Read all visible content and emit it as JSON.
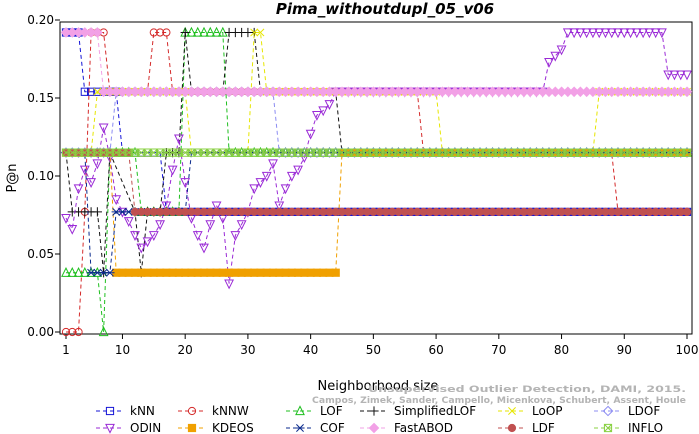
{
  "chart_data": {
    "type": "line",
    "title": "Pima_withoutdupl_05_v06",
    "xlabel": "Neighborhood size",
    "ylabel": "P@n",
    "xlim": [
      1,
      100
    ],
    "ylim": [
      0,
      0.2
    ],
    "xticks": [
      1,
      10,
      20,
      30,
      40,
      50,
      60,
      70,
      80,
      90,
      100
    ],
    "yticks": [
      0.0,
      0.05,
      0.1,
      0.15,
      0.2
    ],
    "ytick_labels": [
      "0.00",
      "0.05",
      "0.10",
      "0.15",
      "0.20"
    ],
    "credit": "Campos, Zimek, Sander, Campello, Micenkova, Schubert, Assent, Houle Unsupervised Outlier Detection, DAMI, 2015.",
    "legend_position": "bottom",
    "series": [
      {
        "name": "kNN",
        "color": "#1414d6",
        "marker": "square",
        "segments": [
          [
            1,
            0.192
          ],
          [
            3,
            0.192
          ],
          [
            4,
            0.154
          ],
          [
            9,
            0.154
          ],
          [
            10,
            0.115
          ],
          [
            16,
            0.115
          ],
          [
            17,
            0.077
          ],
          [
            100,
            0.077
          ]
        ]
      },
      {
        "name": "kNNW",
        "color": "#d42a2a",
        "marker": "circle",
        "segments": [
          [
            1,
            0.0
          ],
          [
            3,
            0.0
          ],
          [
            4,
            0.077
          ],
          [
            5,
            0.192
          ],
          [
            7,
            0.192
          ],
          [
            8,
            0.154
          ],
          [
            14,
            0.154
          ],
          [
            15,
            0.192
          ],
          [
            17,
            0.192
          ],
          [
            18,
            0.154
          ],
          [
            57,
            0.154
          ],
          [
            58,
            0.115
          ],
          [
            88,
            0.115
          ],
          [
            89,
            0.077
          ],
          [
            100,
            0.077
          ]
        ]
      },
      {
        "name": "LOF",
        "color": "#1fbf1f",
        "marker": "triangle",
        "segments": [
          [
            1,
            0.038
          ],
          [
            5,
            0.038
          ],
          [
            6,
            0.038
          ],
          [
            7,
            0.0
          ],
          [
            8,
            0.115
          ],
          [
            12,
            0.115
          ],
          [
            13,
            0.077
          ],
          [
            19,
            0.077
          ],
          [
            20,
            0.192
          ],
          [
            26,
            0.192
          ],
          [
            27,
            0.115
          ],
          [
            100,
            0.115
          ]
        ]
      },
      {
        "name": "SimplifiedLOF",
        "color": "#111111",
        "marker": "plus",
        "segments": [
          [
            1,
            0.115
          ],
          [
            2,
            0.077
          ],
          [
            6,
            0.077
          ],
          [
            7,
            0.038
          ],
          [
            8,
            0.115
          ],
          [
            12,
            0.077
          ],
          [
            13,
            0.038
          ],
          [
            14,
            0.077
          ],
          [
            16,
            0.077
          ],
          [
            17,
            0.115
          ],
          [
            19,
            0.115
          ],
          [
            20,
            0.192
          ],
          [
            21,
            0.154
          ],
          [
            26,
            0.154
          ],
          [
            27,
            0.192
          ],
          [
            31,
            0.192
          ],
          [
            32,
            0.154
          ],
          [
            44,
            0.154
          ],
          [
            45,
            0.115
          ],
          [
            100,
            0.115
          ]
        ]
      },
      {
        "name": "LoOP",
        "color": "#e6e600",
        "marker": "x",
        "segments": [
          [
            1,
            0.115
          ],
          [
            5,
            0.115
          ],
          [
            6,
            0.154
          ],
          [
            20,
            0.154
          ],
          [
            21,
            0.115
          ],
          [
            30,
            0.115
          ],
          [
            31,
            0.192
          ],
          [
            32,
            0.192
          ],
          [
            33,
            0.154
          ],
          [
            60,
            0.154
          ],
          [
            61,
            0.115
          ],
          [
            85,
            0.115
          ],
          [
            86,
            0.154
          ],
          [
            100,
            0.154
          ]
        ]
      },
      {
        "name": "LDOF",
        "color": "#8c8cf2",
        "marker": "diamond",
        "segments": [
          [
            1,
            0.115
          ],
          [
            8,
            0.115
          ],
          [
            9,
            0.154
          ],
          [
            34,
            0.154
          ],
          [
            35,
            0.115
          ],
          [
            100,
            0.115
          ]
        ]
      },
      {
        "name": "ODIN",
        "color": "#9a2ad6",
        "marker": "triangle-down",
        "segments": [
          [
            1,
            0.073
          ],
          [
            2,
            0.066
          ],
          [
            3,
            0.092
          ],
          [
            4,
            0.104
          ],
          [
            5,
            0.096
          ],
          [
            6,
            0.108
          ],
          [
            7,
            0.131
          ],
          [
            8,
            0.112
          ],
          [
            9,
            0.085
          ],
          [
            10,
            0.077
          ],
          [
            11,
            0.071
          ],
          [
            12,
            0.062
          ],
          [
            13,
            0.054
          ],
          [
            14,
            0.058
          ],
          [
            15,
            0.062
          ],
          [
            16,
            0.069
          ],
          [
            17,
            0.081
          ],
          [
            18,
            0.104
          ],
          [
            19,
            0.124
          ],
          [
            20,
            0.096
          ],
          [
            21,
            0.073
          ],
          [
            22,
            0.062
          ],
          [
            23,
            0.054
          ],
          [
            24,
            0.069
          ],
          [
            25,
            0.081
          ],
          [
            26,
            0.073
          ],
          [
            27,
            0.031
          ],
          [
            28,
            0.062
          ],
          [
            29,
            0.069
          ],
          [
            30,
            0.077
          ],
          [
            31,
            0.092
          ],
          [
            32,
            0.096
          ],
          [
            33,
            0.1
          ],
          [
            34,
            0.108
          ],
          [
            35,
            0.081
          ],
          [
            36,
            0.092
          ],
          [
            37,
            0.1
          ],
          [
            38,
            0.104
          ],
          [
            39,
            0.112
          ],
          [
            40,
            0.127
          ],
          [
            41,
            0.139
          ],
          [
            42,
            0.142
          ],
          [
            43,
            0.146
          ],
          [
            44,
            0.154
          ],
          [
            77,
            0.154
          ],
          [
            78,
            0.173
          ],
          [
            79,
            0.177
          ],
          [
            80,
            0.181
          ],
          [
            81,
            0.192
          ],
          [
            96,
            0.192
          ],
          [
            97,
            0.165
          ],
          [
            100,
            0.165
          ]
        ]
      },
      {
        "name": "KDEOS",
        "color": "#f0a000",
        "marker": "square-filled",
        "segments": [
          [
            1,
            0.115
          ],
          [
            8,
            0.115
          ],
          [
            9,
            0.038
          ],
          [
            44,
            0.038
          ],
          [
            45,
            0.115
          ],
          [
            100,
            0.115
          ]
        ]
      },
      {
        "name": "COF",
        "color": "#0a2a8c",
        "marker": "asterisk",
        "segments": [
          [
            1,
            0.115
          ],
          [
            4,
            0.115
          ],
          [
            5,
            0.038
          ],
          [
            8,
            0.038
          ],
          [
            9,
            0.077
          ],
          [
            20,
            0.077
          ],
          [
            21,
            0.115
          ],
          [
            100,
            0.115
          ]
        ]
      },
      {
        "name": "FastABOD",
        "color": "#f2a0e6",
        "marker": "diamond-filled",
        "segments": [
          [
            1,
            0.192
          ],
          [
            6,
            0.192
          ],
          [
            7,
            0.154
          ],
          [
            100,
            0.154
          ]
        ]
      },
      {
        "name": "LDF",
        "color": "#c05050",
        "marker": "circle-filled",
        "segments": [
          [
            1,
            0.115
          ],
          [
            11,
            0.115
          ],
          [
            12,
            0.077
          ],
          [
            100,
            0.077
          ]
        ]
      },
      {
        "name": "INFLO",
        "color": "#88d040",
        "marker": "boxed-x",
        "segments": [
          [
            1,
            0.115
          ],
          [
            100,
            0.115
          ]
        ]
      }
    ]
  }
}
